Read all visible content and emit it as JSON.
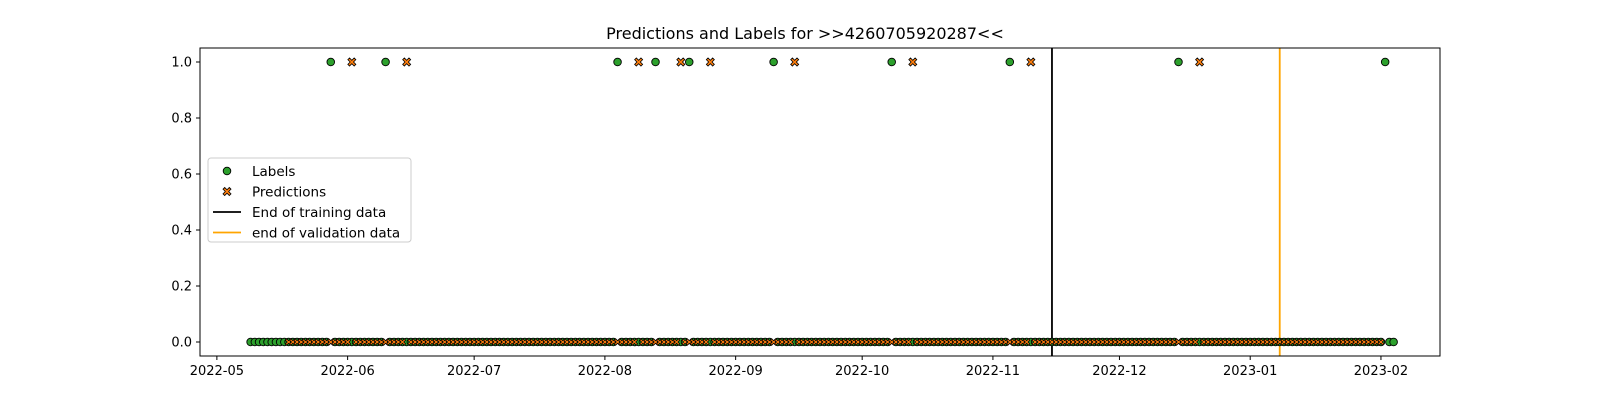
{
  "chart_data": {
    "type": "scatter",
    "title": "Predictions and Labels for >>4260705920287<<",
    "xlabel": "",
    "ylabel": "",
    "x_range": [
      "2022-04-27",
      "2023-02-15"
    ],
    "y_range": [
      -0.05,
      1.05
    ],
    "x_ticks": [
      "2022-05",
      "2022-06",
      "2022-07",
      "2022-08",
      "2022-09",
      "2022-10",
      "2022-11",
      "2022-12",
      "2023-01",
      "2023-02"
    ],
    "y_ticks": [
      "0.0",
      "0.2",
      "0.4",
      "0.6",
      "0.8",
      "1.0"
    ],
    "grid": false,
    "legend_position": "center-left",
    "legend": [
      "Labels",
      "Predictions",
      "End of training data",
      "end of validation data"
    ],
    "colors": {
      "labels": "#2ca02c",
      "predictions": "#ff7f0e",
      "training_line": "#000000",
      "validation_line": "#ffa500"
    },
    "series": [
      {
        "name": "Labels",
        "marker": "circle",
        "range": [
          "2022-05-09",
          "2023-02-04"
        ],
        "positive_dates": [
          "2022-05-28",
          "2022-06-10",
          "2022-08-04",
          "2022-08-13",
          "2022-08-21",
          "2022-09-10",
          "2022-10-08",
          "2022-11-05",
          "2022-12-15",
          "2023-02-02"
        ]
      },
      {
        "name": "Predictions",
        "marker": "x",
        "range": [
          "2022-05-18",
          "2023-02-01"
        ],
        "positive_dates": [
          "2022-06-02",
          "2022-06-15",
          "2022-08-09",
          "2022-08-19",
          "2022-08-26",
          "2022-09-15",
          "2022-10-13",
          "2022-11-10",
          "2022-12-20"
        ]
      }
    ],
    "vlines": [
      {
        "name": "End of training data",
        "date": "2022-11-15"
      },
      {
        "name": "end of validation data",
        "date": "2023-01-08"
      }
    ]
  }
}
